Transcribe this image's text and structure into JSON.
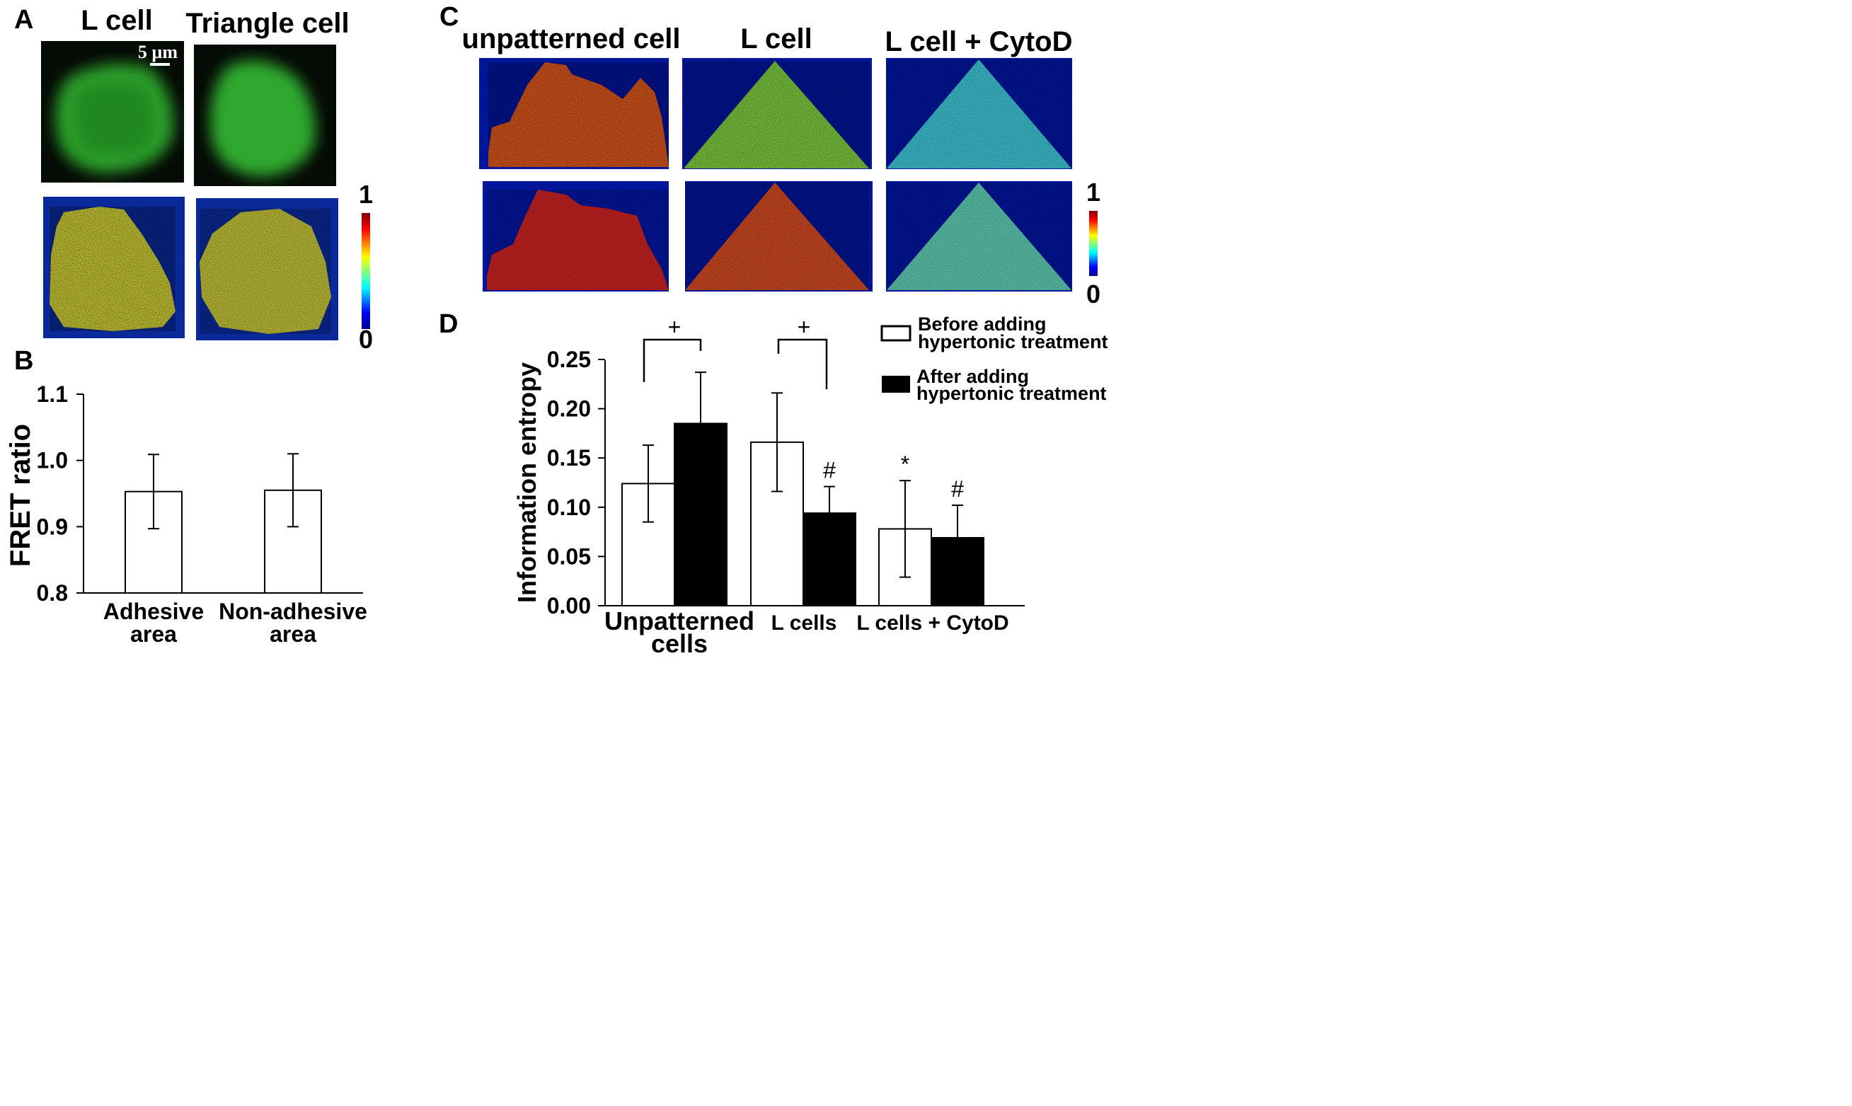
{
  "panels": {
    "A": {
      "label": "A",
      "titles": [
        "L cell",
        "Triangle cell"
      ],
      "scalebar": "5 µm",
      "colorbar": {
        "max": "1",
        "min": "0"
      }
    },
    "C": {
      "label": "C",
      "titles": [
        "unpatterned cell",
        "L cell",
        "L cell + CytoD"
      ],
      "colorbar": {
        "max": "1",
        "min": "0"
      }
    }
  },
  "chart_data": [
    {
      "panel": "B",
      "label": "B",
      "type": "bar",
      "categories": [
        [
          "Adhesive",
          "area"
        ],
        [
          "Non-adhesive",
          "area"
        ]
      ],
      "values": [
        0.953,
        0.955
      ],
      "errors": [
        0.056,
        0.055
      ],
      "ylabel": "FRET ratio",
      "ylim": [
        0.8,
        1.1
      ],
      "yticks": [
        "0.8",
        "0.9",
        "1.0",
        "1.1"
      ],
      "ytick_values": [
        0.8,
        0.9,
        1.0,
        1.1
      ],
      "colors": {
        "bar_fill": "#ffffff",
        "bar_stroke": "#000000"
      }
    },
    {
      "panel": "D",
      "label": "D",
      "type": "bar",
      "categories": [
        [
          "Unpatterned",
          "cells"
        ],
        [
          "L cells"
        ],
        [
          "L cells + CytoD"
        ]
      ],
      "series": [
        {
          "name": [
            "Before adding",
            "hypertonic treatment"
          ],
          "values": [
            0.124,
            0.166,
            0.078
          ],
          "errors": [
            0.039,
            0.05,
            0.049
          ],
          "color": "#ffffff"
        },
        {
          "name": [
            "After adding",
            "hypertonic treatment"
          ],
          "values": [
            0.185,
            0.094,
            0.069
          ],
          "errors": [
            0.052,
            0.027,
            0.033
          ],
          "color": "#000000"
        }
      ],
      "ylabel": "Information entropy",
      "ylim": [
        0,
        0.25
      ],
      "yticks": [
        "0.00",
        "0.05",
        "0.10",
        "0.15",
        "0.20",
        "0.25"
      ],
      "ytick_values": [
        0,
        0.05,
        0.1,
        0.15,
        0.2,
        0.25
      ],
      "annotations": {
        "brackets": [
          "+",
          "+"
        ],
        "marks": [
          {
            "text": "#",
            "category": 1,
            "series": 1
          },
          {
            "text": "*",
            "category": 2,
            "series": 0
          },
          {
            "text": "#",
            "category": 2,
            "series": 1
          }
        ]
      }
    }
  ]
}
